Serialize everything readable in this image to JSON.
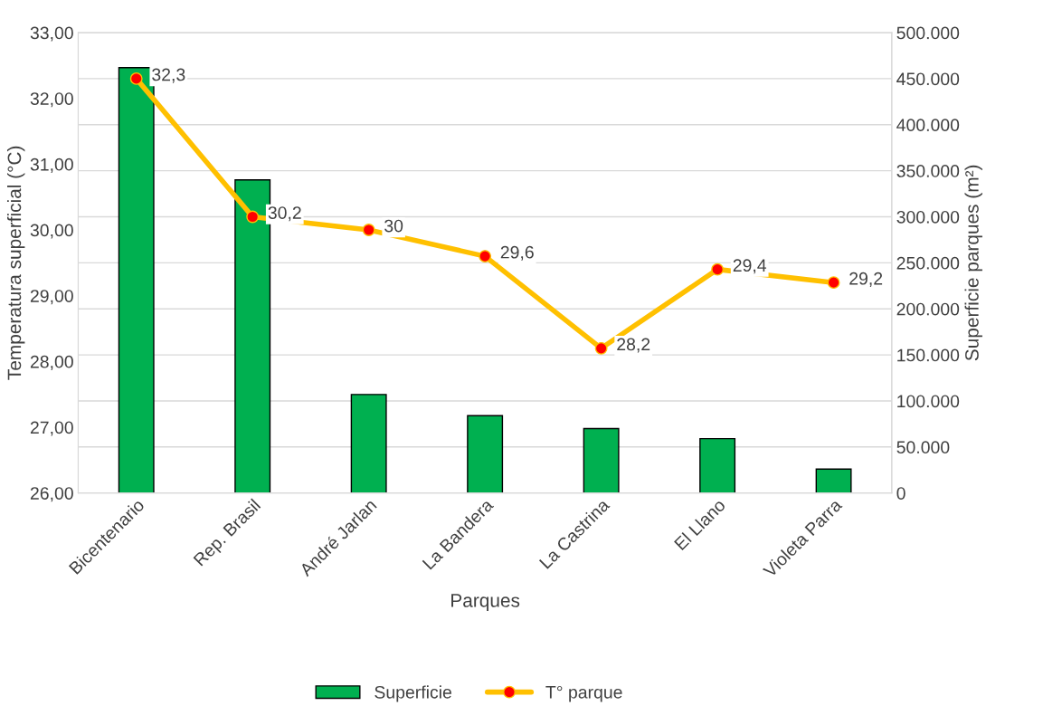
{
  "chart_data": {
    "type": "bar",
    "xlabel": "Parques",
    "ylabel": "Temperatura superficial (°C)",
    "y2label": "Superficie parques (m²)",
    "categories": [
      "Bicentenario",
      "Rep. Brasil",
      "André Jarlan",
      "La Bandera",
      "La Castrina",
      "El Llano",
      "Violeta Parra"
    ],
    "series": [
      {
        "name": "Superficie",
        "axis": "y2",
        "color": "#00b050",
        "values": [
          462000,
          340000,
          107000,
          84000,
          70000,
          59000,
          26000
        ]
      },
      {
        "name": "T° parque",
        "type": "line",
        "axis": "y",
        "color": "#ffc000",
        "marker": "circle",
        "values": [
          32.3,
          30.2,
          30,
          29.6,
          28.2,
          29.4,
          29.2
        ],
        "value_labels": [
          "32,3",
          "30,2",
          "30",
          "29,6",
          "28,2",
          "29,4",
          "29,2"
        ]
      }
    ],
    "ylim": [
      26,
      33
    ],
    "yticks": [
      {
        "value": 26,
        "label": "26,00"
      },
      {
        "value": 27,
        "label": "27,00"
      },
      {
        "value": 28,
        "label": "28,00"
      },
      {
        "value": 29,
        "label": "29,00"
      },
      {
        "value": 30,
        "label": "30,00"
      },
      {
        "value": 31,
        "label": "31,00"
      },
      {
        "value": 32,
        "label": "32,00"
      },
      {
        "value": 33,
        "label": "33,00"
      }
    ],
    "y2lim": [
      0,
      500000
    ],
    "y2ticks": [
      0,
      {
        "value": 50000,
        "label": "50.000"
      },
      {
        "value": 100000,
        "label": "100.000"
      },
      {
        "value": 150000,
        "label": "150.000"
      },
      {
        "value": 200000,
        "label": "200.000"
      },
      {
        "value": 250000,
        "label": "250.000"
      },
      {
        "value": 300000,
        "label": "300.000"
      },
      {
        "value": 350000,
        "label": "350.000"
      },
      {
        "value": 400000,
        "label": "400.000"
      },
      {
        "value": 450000,
        "label": "450.000"
      },
      {
        "value": 500000,
        "label": "500.000"
      }
    ],
    "grid": true,
    "legend": "bottom"
  }
}
